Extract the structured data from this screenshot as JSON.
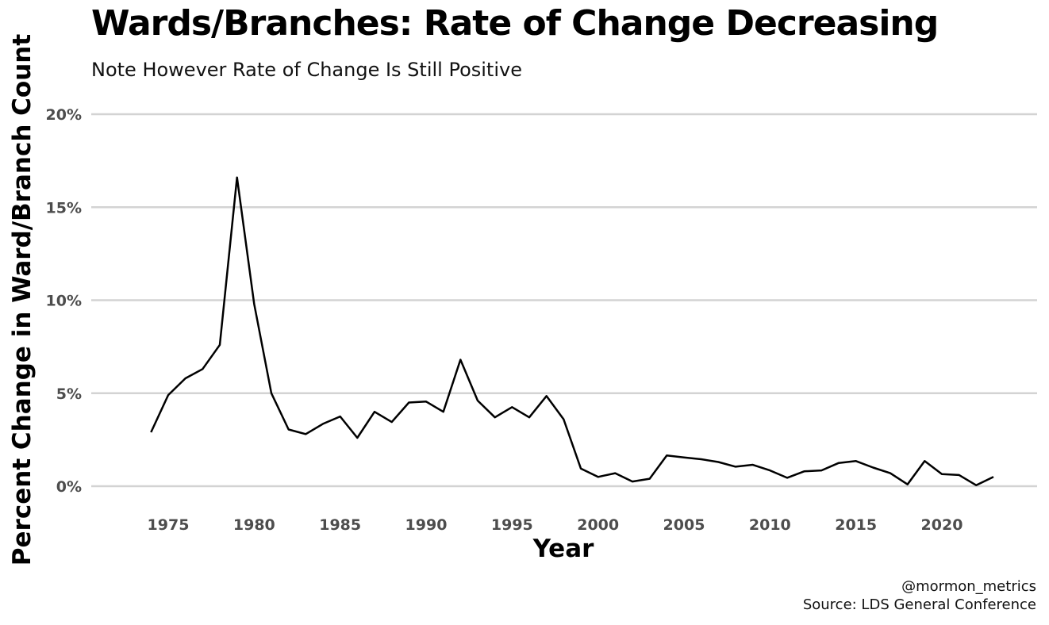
{
  "chart_data": {
    "type": "line",
    "title": "Wards/Branches: Rate of Change Decreasing",
    "subtitle": "Note However Rate of Change Is Still Positive",
    "xlabel": "Year",
    "ylabel": "Percent Change in Ward/Branch Count",
    "caption_line1": "@mormon_metrics",
    "caption_line2": "Source: LDS General Conference",
    "xlim": [
      1970,
      2025
    ],
    "ylim": [
      0,
      20
    ],
    "x_ticks": [
      1975,
      1980,
      1985,
      1990,
      1995,
      2000,
      2005,
      2010,
      2015,
      2020
    ],
    "y_ticks": [
      0,
      5,
      10,
      15,
      20
    ],
    "y_tick_labels": [
      "0%",
      "5%",
      "10%",
      "15%",
      "20%"
    ],
    "grid": "horizontal",
    "line_color": "#000000",
    "grid_color": "#d3d3d3",
    "series": [
      {
        "x": [
          1974,
          1975,
          1976,
          1977,
          1978,
          1979,
          1980,
          1981,
          1982,
          1983,
          1984,
          1985,
          1986,
          1987,
          1988,
          1989,
          1990,
          1991,
          1992,
          1993,
          1994,
          1995,
          1996,
          1997,
          1998,
          1999,
          2000,
          2001,
          2002,
          2003,
          2004,
          2005,
          2006,
          2007,
          2008,
          2009,
          2010,
          2011,
          2012,
          2013,
          2014,
          2015,
          2016,
          2017,
          2018,
          2019,
          2020,
          2021,
          2022,
          2023
        ],
        "values": [
          2.9,
          4.9,
          5.8,
          6.3,
          7.6,
          16.6,
          9.8,
          5.0,
          3.05,
          2.8,
          3.35,
          3.75,
          2.6,
          4.0,
          3.45,
          4.5,
          4.55,
          4.0,
          6.8,
          4.6,
          3.7,
          4.25,
          3.7,
          4.85,
          3.6,
          0.95,
          0.5,
          0.7,
          0.25,
          0.4,
          1.65,
          1.55,
          1.45,
          1.3,
          1.05,
          1.15,
          0.85,
          0.45,
          0.8,
          0.85,
          1.25,
          1.35,
          1.0,
          0.7,
          0.1,
          1.35,
          0.65,
          0.6,
          0.05,
          0.5
        ]
      }
    ]
  }
}
